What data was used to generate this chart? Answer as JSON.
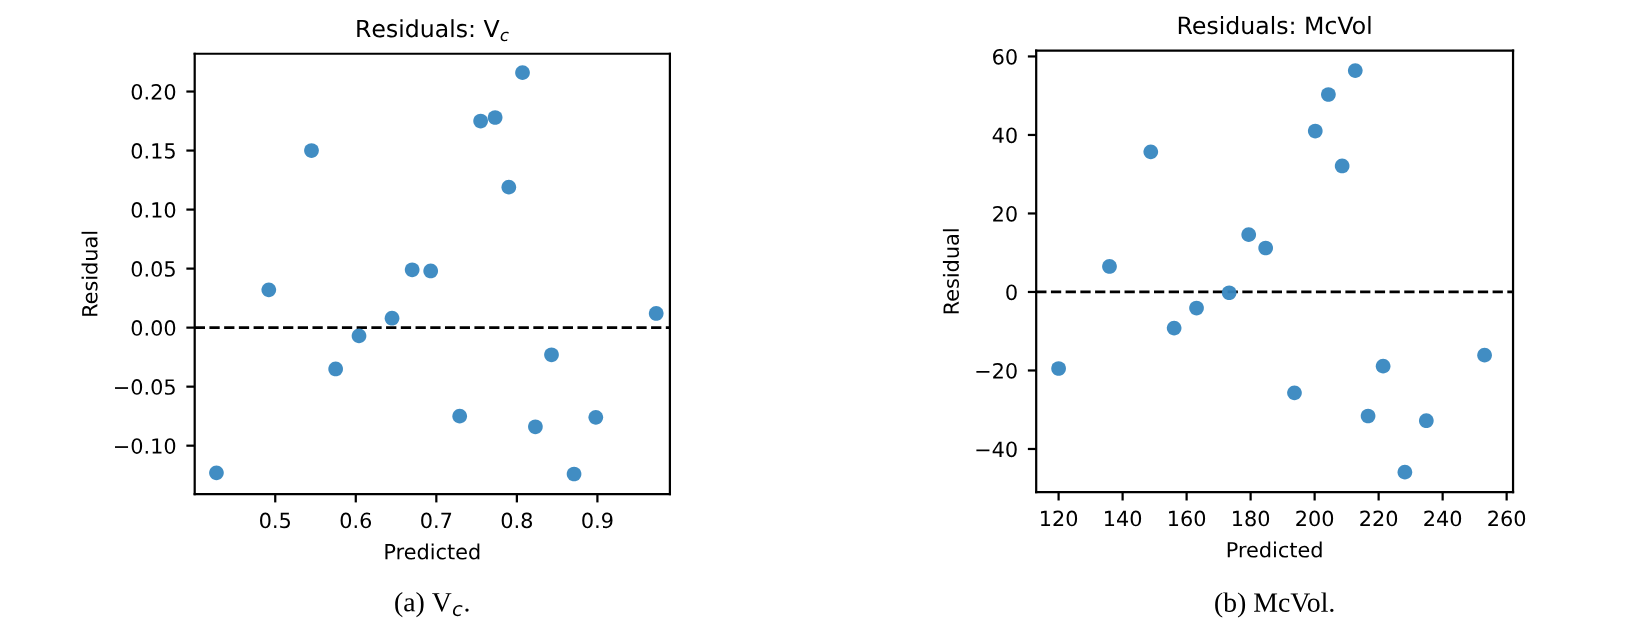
{
  "chart_data": [
    {
      "type": "scatter",
      "title": "Residuals: V$_{c}$",
      "xlabel": "Predicted",
      "ylabel": "Residual",
      "annotations": [
        "(a) V$_{c}$."
      ],
      "x": [
        0.427,
        0.492,
        0.545,
        0.575,
        0.604,
        0.645,
        0.67,
        0.693,
        0.729,
        0.755,
        0.773,
        0.79,
        0.807,
        0.823,
        0.843,
        0.871,
        0.898,
        0.973
      ],
      "series": [
        {
          "color": "#3787c0",
          "values": [
            -0.123,
            0.032,
            0.15,
            -0.035,
            -0.007,
            0.008,
            0.049,
            0.048,
            -0.075,
            0.175,
            0.178,
            0.119,
            0.216,
            -0.084,
            -0.023,
            -0.124,
            -0.076,
            0.012
          ]
        }
      ],
      "xlim": [
        0.4,
        0.99
      ],
      "ylim": [
        -0.141,
        0.232
      ],
      "xticks": [
        0.5,
        0.6,
        0.7,
        0.8,
        0.9
      ],
      "yticks": [
        {
          "value": -0.1,
          "label": "−0.10"
        },
        {
          "value": -0.05,
          "label": "−0.05"
        },
        {
          "value": 0,
          "label": "0.00"
        },
        {
          "value": 0.05,
          "label": "0.05"
        },
        {
          "value": 0.1,
          "label": "0.10"
        },
        {
          "value": 0.15,
          "label": "0.15"
        },
        {
          "value": 0.2,
          "label": "0.20"
        }
      ],
      "ref_lines": [
        {
          "axis": "y",
          "value": 0,
          "color": "#000000",
          "line_style": "dashed"
        }
      ],
      "marker": "circle",
      "grid": false,
      "legend": false
    },
    {
      "type": "scatter",
      "title": "Residuals: McVol",
      "xlabel": "Predicted",
      "ylabel": "Residual",
      "annotations": [
        "(b) McVol."
      ],
      "x": [
        120,
        135.9,
        148.8,
        156.1,
        163.1,
        173.3,
        179.4,
        184.7,
        193.7,
        200.2,
        204.3,
        208.6,
        212.7,
        216.7,
        221.4,
        228.2,
        234.9,
        253.1
      ],
      "series": [
        {
          "color": "#3787c0",
          "values": [
            -19.5,
            6.5,
            35.7,
            -9.2,
            -4.1,
            -0.2,
            14.6,
            11.2,
            -25.7,
            41.0,
            50.3,
            32.1,
            56.4,
            -31.6,
            -18.9,
            -45.9,
            -32.8,
            -16.1
          ]
        }
      ],
      "xlim": [
        113,
        262
      ],
      "ylim": [
        -51,
        61.5
      ],
      "xticks": [
        120,
        140,
        160,
        180,
        200,
        220,
        240,
        260
      ],
      "yticks": [
        {
          "value": -40,
          "label": "−40"
        },
        {
          "value": -20,
          "label": "−20"
        },
        0,
        20,
        40,
        60
      ],
      "ref_lines": [
        {
          "axis": "y",
          "value": 0,
          "color": "#000000",
          "line_style": "dashed"
        }
      ],
      "marker": "circle",
      "grid": false,
      "legend": false
    }
  ]
}
